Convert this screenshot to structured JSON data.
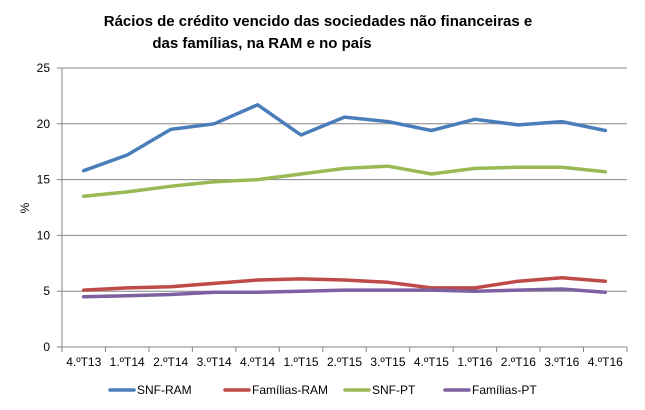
{
  "colors": {
    "SNF-RAM": "#4a7ebb",
    "Famílias-RAM": "#be4b48",
    "SNF-PT": "#98b954",
    "Famílias-PT": "#7d60a0",
    "grid": "#868686",
    "axis": "#868686"
  },
  "chart_data": {
    "type": "line",
    "title_lines": [
      "Rácios de crédito vencido  das sociedades  não financeiras e",
      "das famílias, na RAM e no país"
    ],
    "xlabel": "",
    "ylabel": "%",
    "ylim": [
      0,
      25
    ],
    "yticks": [
      "0",
      "5",
      "10",
      "15",
      "20",
      "25"
    ],
    "grid": true,
    "legend_position": "bottom",
    "categories": [
      "4.ºT13",
      "1.ºT14",
      "2.ºT14",
      "3.ºT14",
      "4.ºT14",
      "1.ºT15",
      "2.ºT15",
      "3.ºT15",
      "4.ºT15",
      "1.ºT16",
      "2.ºT16",
      "3.ºT16",
      "4.ºT16"
    ],
    "series": [
      {
        "name": "SNF-RAM",
        "values": [
          15.8,
          17.2,
          19.5,
          20.0,
          21.7,
          19.0,
          20.6,
          20.2,
          19.4,
          20.4,
          19.9,
          20.2,
          19.4
        ]
      },
      {
        "name": "Famílias-RAM",
        "values": [
          5.1,
          5.3,
          5.4,
          5.7,
          6.0,
          6.1,
          6.0,
          5.8,
          5.3,
          5.3,
          5.9,
          6.2,
          5.9
        ]
      },
      {
        "name": "SNF-PT",
        "values": [
          13.5,
          13.9,
          14.4,
          14.8,
          15.0,
          15.5,
          16.0,
          16.2,
          15.5,
          16.0,
          16.1,
          16.1,
          15.7
        ]
      },
      {
        "name": "Famílias-PT",
        "values": [
          4.5,
          4.6,
          4.7,
          4.9,
          4.9,
          5.0,
          5.1,
          5.1,
          5.1,
          5.0,
          5.1,
          5.2,
          4.9
        ]
      }
    ]
  }
}
